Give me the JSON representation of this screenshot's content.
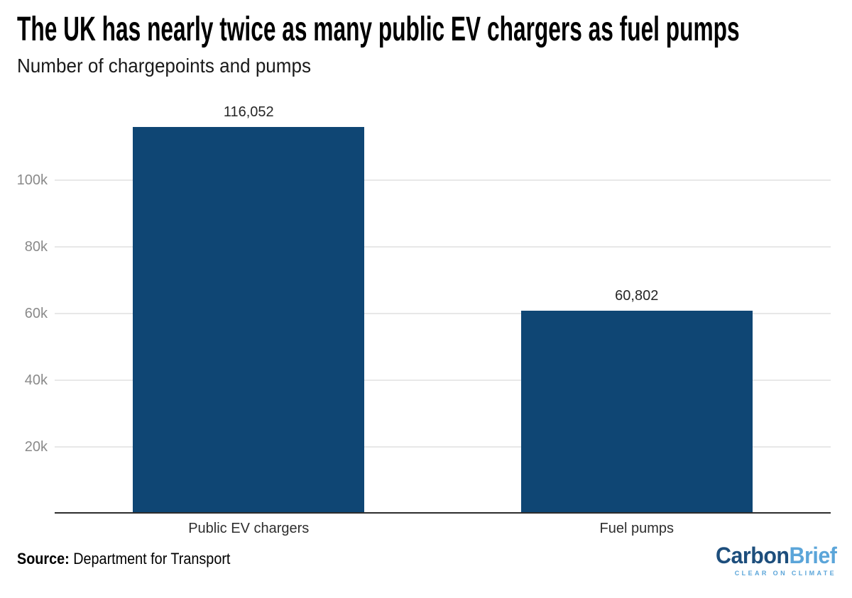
{
  "header": {
    "title": "The UK has nearly twice as many public EV chargers as fuel pumps",
    "subtitle": "Number of chargepoints and pumps"
  },
  "chart_data": {
    "type": "bar",
    "title": "The UK has nearly twice as many public EV chargers as fuel pumps",
    "subtitle": "Number of chargepoints and pumps",
    "categories": [
      "Public EV chargers",
      "Fuel pumps"
    ],
    "values": [
      116052,
      60802
    ],
    "value_labels": [
      "116,052",
      "60,802"
    ],
    "xlabel": "",
    "ylabel": "",
    "ylim": [
      0,
      124000
    ],
    "ytick_values": [
      20000,
      40000,
      60000,
      80000,
      100000
    ],
    "ytick_labels": [
      "20k",
      "40k",
      "60k",
      "80k",
      "100k"
    ],
    "grid": true,
    "legend": false,
    "bar_color": "#0f4674",
    "gridline_color": "#e8e8e8",
    "axis_line_color": "#2d2d2d",
    "tick_label_color": "#8a8a8a"
  },
  "footer": {
    "source_label": "Source:",
    "source_text": " Department for Transport"
  },
  "logo": {
    "part1": "Carbon",
    "part2": "Brief",
    "tagline": "CLEAR ON CLIMATE",
    "part1_color": "#1d4e7c",
    "part2_color": "#5ba5d9",
    "tagline_color": "#5ba5d9"
  }
}
